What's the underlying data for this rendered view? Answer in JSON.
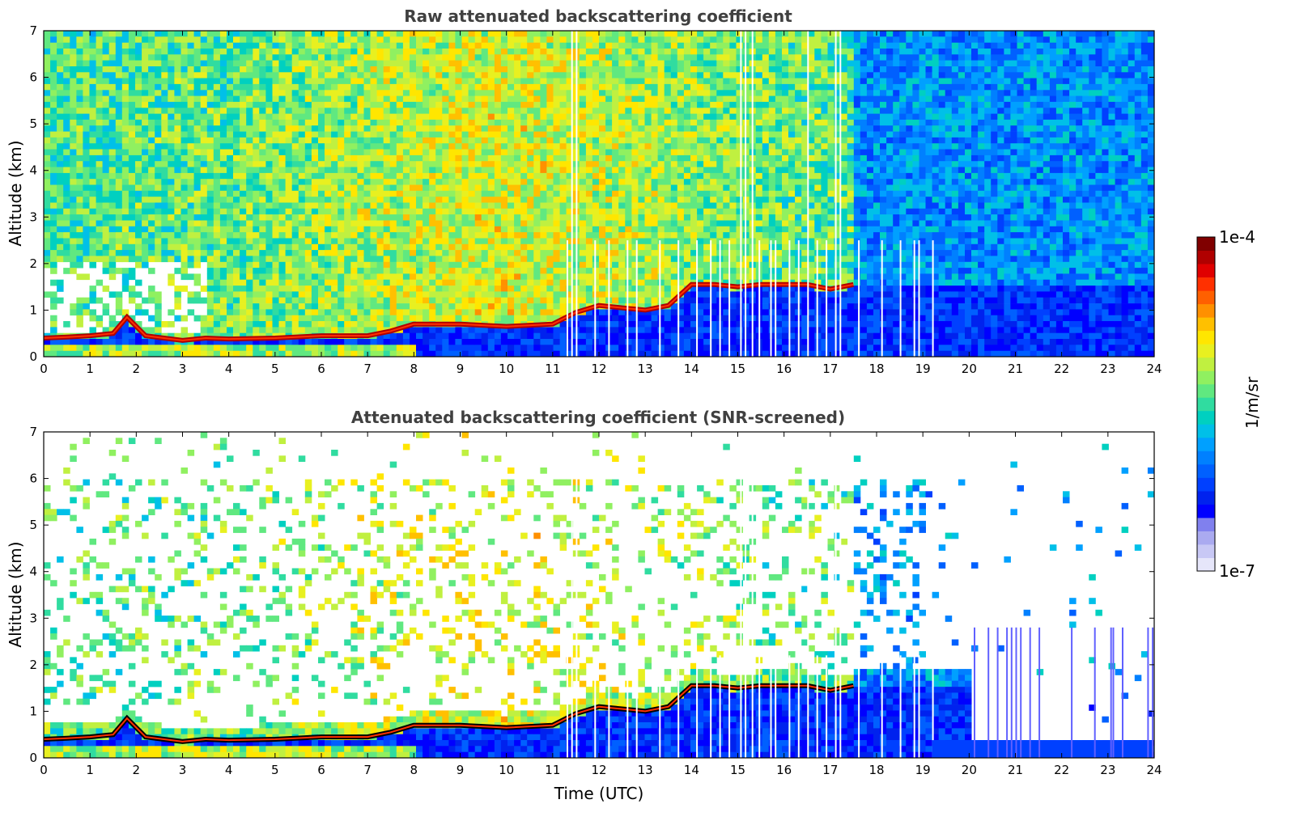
{
  "figure": {
    "xlabel": "Time (UTC)"
  },
  "colorbar": {
    "label": "1/m/sr",
    "top_label": "1e-4",
    "bottom_label": "1e-7",
    "colors": [
      "#e6e6fa",
      "#c8c8f5",
      "#aaaaf0",
      "#8080ee",
      "#0000ff",
      "#0022ee",
      "#0040ff",
      "#0060ff",
      "#0080ff",
      "#00a0ff",
      "#00c0e8",
      "#00d0c0",
      "#30dca0",
      "#60e880",
      "#90f060",
      "#c0f040",
      "#e8f020",
      "#ffe600",
      "#ffc000",
      "#ff9000",
      "#ff6000",
      "#ff3000",
      "#e00000",
      "#b00000",
      "#800000"
    ]
  },
  "chart_data": [
    {
      "type": "heatmap",
      "title": "Raw attenuated backscattering coefficient",
      "xlabel": "",
      "ylabel": "Altitude (km)",
      "xlim": [
        0,
        24
      ],
      "ylim": [
        0,
        7
      ],
      "xticks": [
        "0",
        "1",
        "2",
        "3",
        "4",
        "5",
        "6",
        "7",
        "8",
        "9",
        "10",
        "11",
        "12",
        "13",
        "14",
        "15",
        "16",
        "17",
        "18",
        "19",
        "20",
        "21",
        "22",
        "23",
        "24"
      ],
      "yticks": [
        "0",
        "1",
        "2",
        "3",
        "4",
        "5",
        "6",
        "7"
      ],
      "screened": false,
      "cloud_base_layer": {
        "time_utc": [
          0,
          0.5,
          1,
          1.5,
          1.8,
          2.2,
          2.6,
          3,
          3.5,
          4,
          5,
          6,
          7,
          7.5,
          8,
          9,
          10,
          11,
          11.5,
          12,
          12.5,
          13,
          13.5,
          14,
          14.5,
          15,
          15.5,
          16,
          16.5,
          17,
          17.5
        ],
        "altitude_km": [
          0.4,
          0.42,
          0.45,
          0.5,
          0.85,
          0.45,
          0.4,
          0.35,
          0.4,
          0.38,
          0.4,
          0.45,
          0.45,
          0.55,
          0.7,
          0.7,
          0.65,
          0.7,
          0.95,
          1.1,
          1.05,
          1.0,
          1.1,
          1.55,
          1.55,
          1.5,
          1.55,
          1.55,
          1.55,
          1.45,
          1.55
        ]
      },
      "data_gaps_utc": [
        11.3,
        11.4,
        11.5,
        11.9,
        12.2,
        12.6,
        12.8,
        13.3,
        13.7,
        14.1,
        14.4,
        14.6,
        14.8,
        15.05,
        15.15,
        15.3,
        15.45,
        15.7,
        15.8,
        16.1,
        16.3,
        16.5,
        16.7,
        16.9,
        17.1,
        17.2,
        17.6,
        18.1,
        18.5,
        18.8,
        18.9,
        19.2
      ],
      "tall_gaps_utc": [
        11.4,
        11.5,
        15.1,
        15.3,
        16.5,
        17.15
      ]
    },
    {
      "type": "heatmap",
      "title": "Attenuated backscattering coefficient (SNR-screened)",
      "xlabel": "Time (UTC)",
      "ylabel": "Altitude (km)",
      "xlim": [
        0,
        24
      ],
      "ylim": [
        0,
        7
      ],
      "xticks": [
        "0",
        "1",
        "2",
        "3",
        "4",
        "5",
        "6",
        "7",
        "8",
        "9",
        "10",
        "11",
        "12",
        "13",
        "14",
        "15",
        "16",
        "17",
        "18",
        "19",
        "20",
        "21",
        "22",
        "23",
        "24"
      ],
      "yticks": [
        "0",
        "1",
        "2",
        "3",
        "4",
        "5",
        "6",
        "7"
      ],
      "screened": true,
      "cloud_base_layer": {
        "time_utc": [
          0,
          0.5,
          1,
          1.5,
          1.8,
          2.2,
          2.6,
          3,
          3.5,
          4,
          5,
          6,
          7,
          7.5,
          8,
          9,
          10,
          11,
          11.5,
          12,
          12.5,
          13,
          13.5,
          14,
          14.5,
          15,
          15.5,
          16,
          16.5,
          17,
          17.5
        ],
        "altitude_km": [
          0.4,
          0.42,
          0.45,
          0.5,
          0.85,
          0.45,
          0.4,
          0.35,
          0.4,
          0.38,
          0.4,
          0.45,
          0.45,
          0.55,
          0.7,
          0.7,
          0.65,
          0.7,
          0.95,
          1.1,
          1.05,
          1.0,
          1.1,
          1.55,
          1.55,
          1.5,
          1.55,
          1.55,
          1.55,
          1.45,
          1.55
        ]
      },
      "data_gaps_utc": [
        11.3,
        11.4,
        11.5,
        11.9,
        12.2,
        12.6,
        12.8,
        13.3,
        13.7,
        14.1,
        14.4,
        14.6,
        14.8,
        15.05,
        15.15,
        15.3,
        15.45,
        15.7,
        15.8,
        16.1,
        16.3,
        16.5,
        16.7,
        16.9,
        17.1,
        17.2,
        17.6,
        18.1,
        18.5,
        18.8,
        18.9,
        19.2
      ],
      "tall_gaps_utc": [
        11.4,
        11.5,
        15.1,
        15.3,
        16.5,
        17.15
      ],
      "late_spikes_utc": [
        20.1,
        20.4,
        20.6,
        20.8,
        20.9,
        21.0,
        21.1,
        21.3,
        21.5,
        22.2,
        22.7,
        23.05,
        23.1,
        23.3,
        23.85,
        23.95
      ]
    }
  ]
}
